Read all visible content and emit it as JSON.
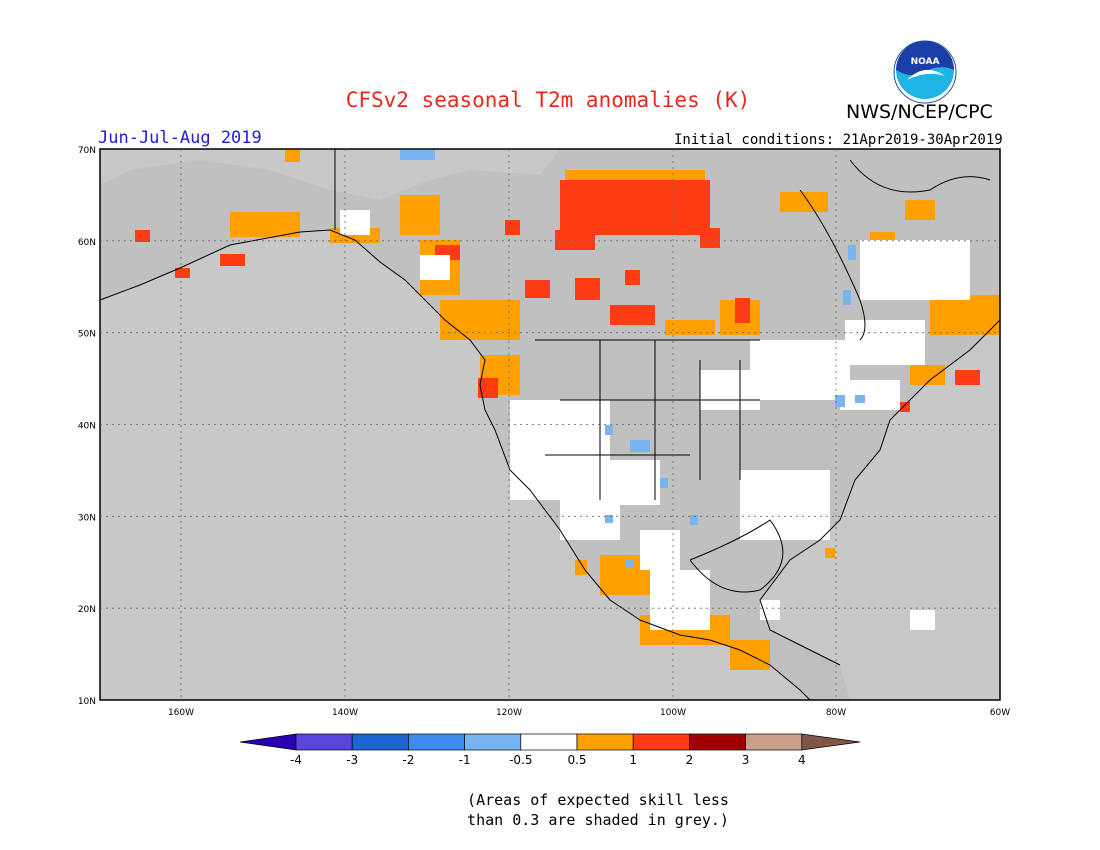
{
  "title": "CFSv2 seasonal T2m anomalies (K)",
  "agency": "NWS/NCEP/CPC",
  "logo_text": "NOAA",
  "season": "Jun-Jul-Aug 2019",
  "initial_conditions": "Initial conditions: 21Apr2019-30Apr2019",
  "colors": {
    "title": "#e8281e",
    "season": "#2020d0",
    "ocean": "#c8c8c8",
    "grey_skill": "#c0c0c0",
    "orange": "#ffa000",
    "red": "#ff3c14",
    "white": "#ffffff",
    "light_blue": "#78b4f0"
  },
  "map": {
    "lat_labels": [
      "70N",
      "60N",
      "50N",
      "40N",
      "30N",
      "20N",
      "10N"
    ],
    "lon_labels": [
      "160W",
      "140W",
      "120W",
      "100W",
      "80W",
      "60W"
    ]
  },
  "colorbar": {
    "labels": [
      "-4",
      "-3",
      "-2",
      "-1",
      "-0.5",
      "0.5",
      "1",
      "2",
      "3",
      "4"
    ],
    "colors": [
      "#2a00b0",
      "#5a46dc",
      "#1e64d2",
      "#3c8cf0",
      "#78b4f0",
      "#ffffff",
      "#ffa000",
      "#ff3c14",
      "#a00000",
      "#c8a08c",
      "#825546"
    ]
  },
  "note": {
    "line1": "(Areas of expected skill less",
    "line2": "than 0.3 are shaded in grey.)"
  }
}
